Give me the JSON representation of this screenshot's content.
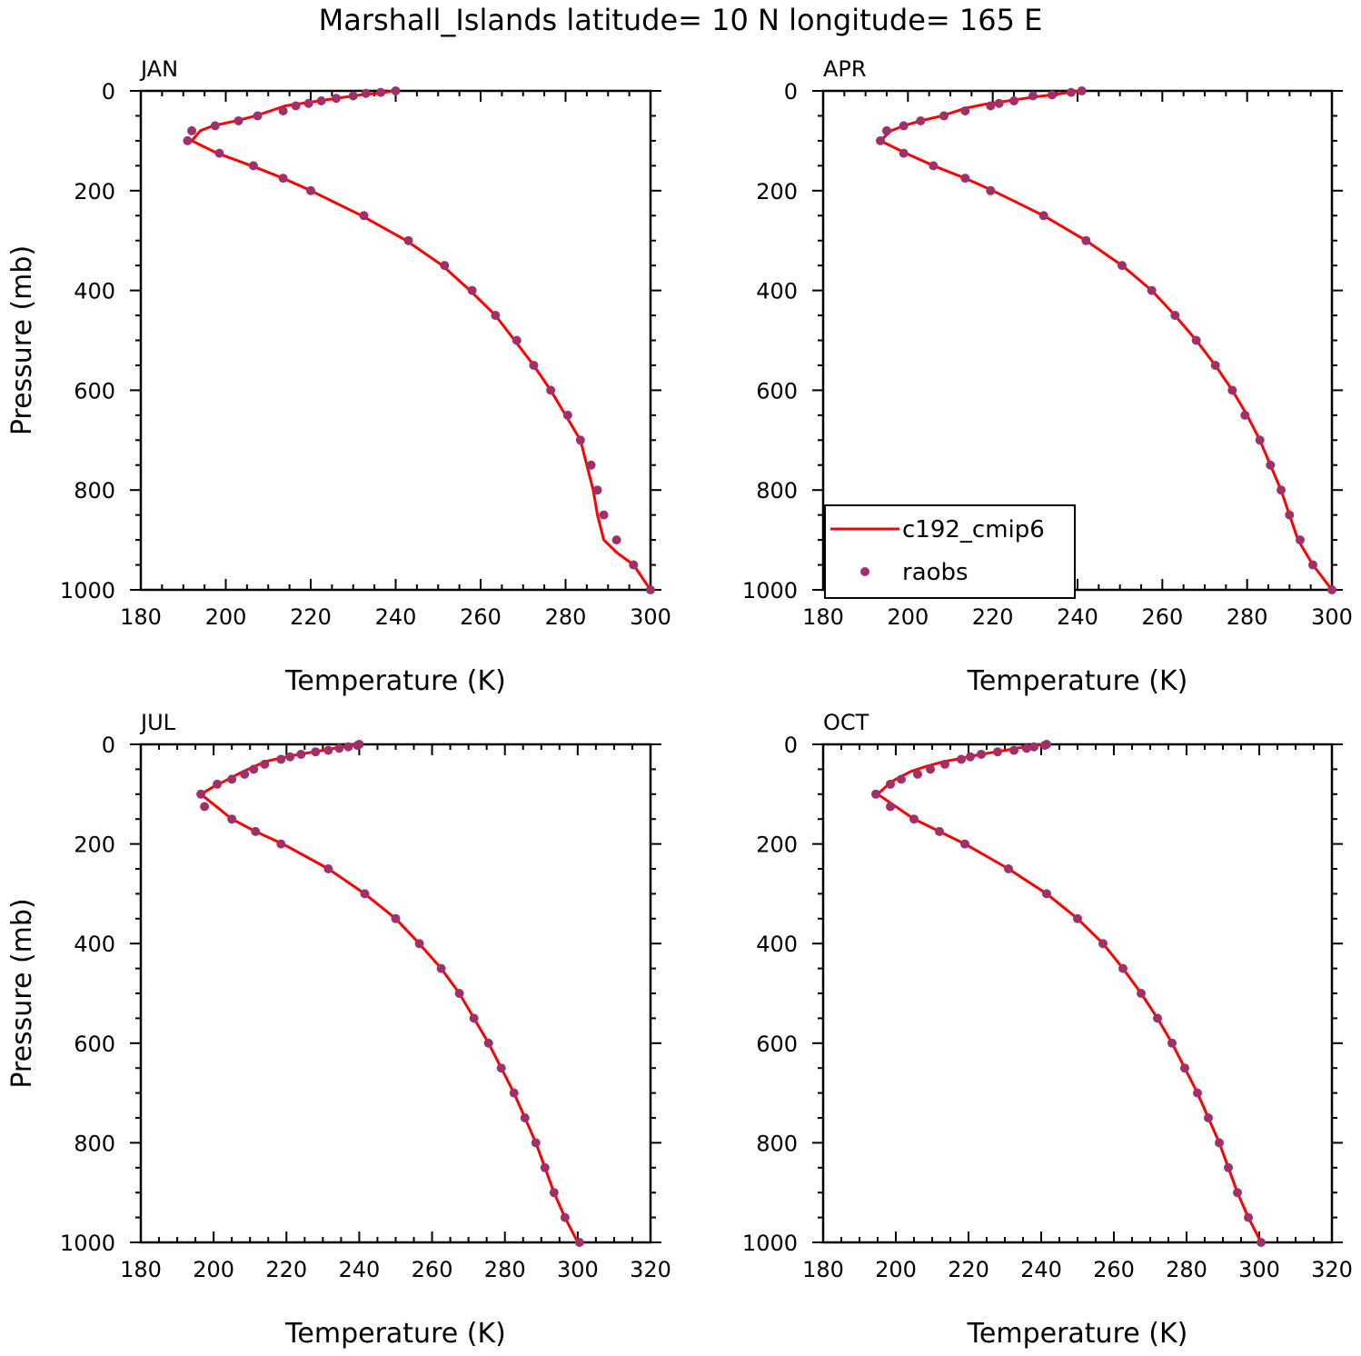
{
  "title": "Marshall_Islands  latitude= 10 N longitude= 165 E",
  "legend": {
    "model_label": "c192_cmip6",
    "obs_label": "raobs"
  },
  "colors": {
    "model_line": "#ff0000",
    "obs_marker": "#a0306a",
    "axes": "#000000"
  },
  "chart_data": [
    {
      "type": "line",
      "panel_label": "JAN",
      "xlabel": "Temperature (K)",
      "ylabel": "Pressure (mb)",
      "xlim": [
        180,
        300
      ],
      "ylim": [
        0,
        1000
      ],
      "y_inverted": true,
      "xticks": [
        180,
        200,
        220,
        240,
        260,
        280,
        300
      ],
      "yticks": [
        0,
        200,
        400,
        600,
        800,
        1000
      ],
      "show_legend": false,
      "series": [
        {
          "name": "c192_cmip6",
          "style": "line",
          "x": [
            239.5,
            236,
            233,
            230,
            226,
            222,
            218,
            214,
            207,
            202.5,
            197,
            194,
            192,
            198,
            206,
            213.5,
            220,
            232,
            242.5,
            251,
            257.5,
            263.5,
            268,
            272.5,
            276.5,
            280,
            283.5,
            285,
            286.5,
            287.5,
            289,
            292,
            296,
            300
          ],
          "y": [
            0,
            5,
            7,
            10,
            15,
            20,
            25,
            30,
            50,
            60,
            70,
            80,
            100,
            125,
            150,
            175,
            200,
            250,
            300,
            350,
            400,
            450,
            500,
            550,
            600,
            650,
            700,
            750,
            800,
            850,
            900,
            925,
            950,
            1000
          ]
        },
        {
          "name": "raobs",
          "style": "marker",
          "x": [
            240,
            236.5,
            233,
            230,
            226,
            222.5,
            219.5,
            216.5,
            213.5,
            207.5,
            203,
            197.5,
            192,
            191,
            198.5,
            206.5,
            213.5,
            220,
            232.5,
            243,
            251.5,
            258,
            263.5,
            268.5,
            272.5,
            276.5,
            280.5,
            283.5,
            286,
            287.5,
            289,
            292,
            296,
            300
          ],
          "y": [
            0,
            3,
            5,
            10,
            15,
            20,
            25,
            30,
            40,
            50,
            60,
            70,
            80,
            100,
            125,
            150,
            175,
            200,
            250,
            300,
            350,
            400,
            450,
            500,
            550,
            600,
            650,
            700,
            750,
            800,
            850,
            900,
            950,
            1000
          ]
        }
      ]
    },
    {
      "type": "line",
      "panel_label": "APR",
      "xlabel": "Temperature (K)",
      "ylabel": "",
      "xlim": [
        180,
        300
      ],
      "ylim": [
        0,
        1000
      ],
      "y_inverted": true,
      "xticks": [
        180,
        200,
        220,
        240,
        260,
        280,
        300
      ],
      "yticks": [
        0,
        200,
        400,
        600,
        800,
        1000
      ],
      "show_legend": true,
      "series": [
        {
          "name": "c192_cmip6",
          "style": "line",
          "x": [
            241,
            238,
            234,
            230,
            226,
            222,
            218,
            213.5,
            208,
            203,
            199,
            196,
            193.5,
            199.5,
            206,
            213.5,
            220,
            232,
            242,
            250.5,
            257.5,
            263,
            268,
            272.5,
            276.5,
            280,
            283,
            285.5,
            288,
            290,
            292,
            295.5,
            300
          ],
          "y": [
            0,
            3,
            8,
            12,
            17,
            22,
            27,
            35,
            50,
            60,
            70,
            80,
            100,
            125,
            150,
            175,
            200,
            250,
            300,
            350,
            400,
            450,
            500,
            550,
            600,
            650,
            700,
            750,
            800,
            850,
            900,
            950,
            1000
          ]
        },
        {
          "name": "raobs",
          "style": "marker",
          "x": [
            241,
            238.5,
            234,
            229.5,
            225,
            221.5,
            219.5,
            213.5,
            208.5,
            203,
            199,
            195,
            193.5,
            199,
            206,
            213.5,
            219.5,
            232,
            242,
            250.5,
            257.5,
            263,
            268,
            272.5,
            276.5,
            279.5,
            283,
            285.5,
            288,
            290,
            292.5,
            295.5,
            300
          ],
          "y": [
            0,
            3,
            8,
            10,
            20,
            25,
            30,
            40,
            50,
            60,
            70,
            80,
            100,
            125,
            150,
            175,
            200,
            250,
            300,
            350,
            400,
            450,
            500,
            550,
            600,
            650,
            700,
            750,
            800,
            850,
            900,
            950,
            1000
          ]
        }
      ]
    },
    {
      "type": "line",
      "panel_label": "JUL",
      "xlabel": "Temperature (K)",
      "ylabel": "Pressure (mb)",
      "xlim": [
        180,
        320
      ],
      "ylim": [
        0,
        1000
      ],
      "y_inverted": true,
      "xticks": [
        180,
        200,
        220,
        240,
        260,
        280,
        300,
        320
      ],
      "yticks": [
        0,
        200,
        400,
        600,
        800,
        1000
      ],
      "show_legend": false,
      "series": [
        {
          "name": "c192_cmip6",
          "style": "line",
          "x": [
            240,
            237,
            234,
            230,
            226,
            222,
            218,
            214,
            211,
            208,
            204,
            200,
            196.5,
            205,
            211.5,
            219,
            231.5,
            241.5,
            250,
            256.5,
            262.5,
            267.5,
            271.5,
            275.5,
            279,
            282.5,
            285.5,
            288.5,
            291,
            293.5,
            296.5,
            300
          ],
          "y": [
            0,
            3,
            7,
            12,
            17,
            22,
            28,
            35,
            45,
            55,
            70,
            85,
            100,
            150,
            175,
            200,
            250,
            300,
            350,
            400,
            450,
            500,
            550,
            600,
            650,
            700,
            750,
            800,
            850,
            900,
            950,
            1000
          ]
        },
        {
          "name": "raobs",
          "style": "marker",
          "x": [
            240,
            239.5,
            237,
            234.5,
            231.5,
            228,
            224,
            221,
            218.5,
            214,
            211,
            208.5,
            205,
            201,
            196.5,
            197.5,
            205,
            211.5,
            218.5,
            231.5,
            241.5,
            250,
            256.5,
            262.5,
            267.5,
            271.5,
            275.5,
            279,
            282.5,
            285.5,
            288.5,
            291,
            293.5,
            296.5,
            300.5
          ],
          "y": [
            0,
            2,
            5,
            8,
            12,
            15,
            20,
            25,
            30,
            40,
            50,
            60,
            70,
            80,
            100,
            125,
            150,
            175,
            200,
            250,
            300,
            350,
            400,
            450,
            500,
            550,
            600,
            650,
            700,
            750,
            800,
            850,
            900,
            950,
            1000
          ]
        }
      ]
    },
    {
      "type": "line",
      "panel_label": "OCT",
      "xlabel": "Temperature (K)",
      "ylabel": "",
      "xlim": [
        180,
        320
      ],
      "ylim": [
        0,
        1000
      ],
      "y_inverted": true,
      "xticks": [
        180,
        200,
        220,
        240,
        260,
        280,
        300,
        320
      ],
      "yticks": [
        0,
        200,
        400,
        600,
        800,
        1000
      ],
      "show_legend": false,
      "series": [
        {
          "name": "c192_cmip6",
          "style": "line",
          "x": [
            241,
            238,
            234,
            230,
            226,
            222,
            218,
            213,
            208,
            204,
            200,
            198,
            195,
            205,
            212,
            219,
            231,
            241.5,
            250,
            257,
            262.5,
            267.5,
            272,
            276,
            279.5,
            283,
            286,
            289,
            291.5,
            294,
            297,
            300.5
          ],
          "y": [
            0,
            3,
            7,
            12,
            17,
            22,
            28,
            35,
            45,
            55,
            70,
            80,
            100,
            150,
            175,
            200,
            250,
            300,
            350,
            400,
            450,
            500,
            550,
            600,
            650,
            700,
            750,
            800,
            850,
            900,
            950,
            1000
          ]
        },
        {
          "name": "raobs",
          "style": "marker",
          "x": [
            241.5,
            241,
            238,
            236,
            232.5,
            228,
            223.5,
            220.5,
            218,
            213.5,
            209.5,
            206,
            201.5,
            198.5,
            194.5,
            198.5,
            205,
            212,
            219,
            231,
            241.5,
            250,
            257,
            262.5,
            267.5,
            272,
            276,
            279.5,
            283,
            286,
            289,
            291.5,
            294,
            297,
            300.5
          ],
          "y": [
            0,
            2,
            5,
            8,
            12,
            15,
            20,
            25,
            30,
            40,
            50,
            60,
            70,
            80,
            100,
            125,
            150,
            175,
            200,
            250,
            300,
            350,
            400,
            450,
            500,
            550,
            600,
            650,
            700,
            750,
            800,
            850,
            900,
            950,
            1000
          ]
        }
      ]
    }
  ]
}
